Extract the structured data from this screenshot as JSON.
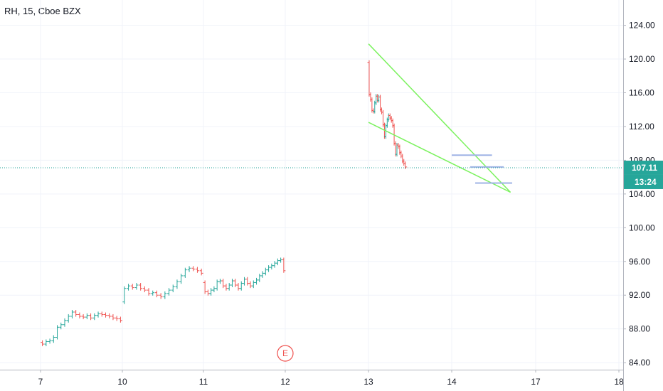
{
  "header": {
    "symbol_label": "RH, 15, Cboe BZX"
  },
  "colors": {
    "up": "#26a69a",
    "down": "#ef5350",
    "trend": "#7cf25f",
    "level": "#9fb3e6",
    "last_price": "#26a69a",
    "grid": "#f0f3fa",
    "axis": "#131722"
  },
  "chart_data": {
    "type": "candlestick",
    "title": "RH, 15, Cboe BZX",
    "x_tick_labels": [
      "7",
      "10",
      "11",
      "12",
      "13",
      "14",
      "17",
      "18"
    ],
    "y_tick_labels": [
      "84.00",
      "88.00",
      "92.00",
      "96.00",
      "100.00",
      "104.00",
      "108.00",
      "112.00",
      "116.00",
      "120.00",
      "124.00"
    ],
    "ylim": [
      83,
      127
    ],
    "last_price": {
      "value": 107.11,
      "label": "107.11",
      "countdown": "13:24"
    },
    "event_marker": {
      "label": "E",
      "day": "12"
    },
    "grid": true,
    "segments": [
      {
        "day_start": 0,
        "day_end": 1,
        "start_value": 86.4,
        "points": [
          86.2,
          86.5,
          86.6,
          87.0,
          88.2,
          88.5,
          89.0,
          89.5,
          90.0,
          89.7,
          89.5,
          89.4,
          89.6,
          89.3,
          89.6,
          89.8,
          89.7,
          89.6,
          89.5,
          89.3,
          89.2,
          89.0
        ]
      },
      {
        "day_start": 1,
        "day_end": 2,
        "start_value": 91.2,
        "points": [
          92.8,
          93.1,
          92.9,
          93.2,
          92.8,
          92.6,
          92.2,
          92.3,
          92.0,
          91.8,
          92.2,
          92.6,
          93.0,
          93.6,
          94.3,
          95.0,
          95.2,
          95.1,
          94.9,
          94.6
        ]
      },
      {
        "day_start": 2,
        "day_end": 3,
        "start_value": 93.5,
        "points": [
          92.4,
          92.2,
          92.6,
          92.8,
          93.6,
          93.7,
          93.1,
          92.8,
          93.2,
          93.7,
          93.2,
          92.8,
          93.4,
          93.9,
          93.4,
          93.1,
          93.5,
          93.8,
          94.3,
          94.6,
          95.0,
          95.3,
          95.5,
          95.8,
          96.1,
          96.2,
          94.9
        ]
      },
      {
        "day_start": 4,
        "day_end": 4.45,
        "start_value": 119.6,
        "points": [
          115.8,
          115.2,
          113.9,
          113.8,
          114.8,
          115.6,
          115.1,
          115.5,
          114.0,
          113.7,
          112.2,
          110.8,
          112.1,
          112.8,
          113.3,
          113.0,
          112.7,
          112.1,
          110.0,
          108.7,
          109.8,
          109.6,
          108.9,
          108.5,
          107.9,
          107.6,
          107.2
        ]
      }
    ],
    "annotations": [
      {
        "type": "trendline",
        "points": [
          [
            4.0,
            121.8
          ],
          [
            5.7,
            104.2
          ]
        ]
      },
      {
        "type": "trendline",
        "points": [
          [
            4.0,
            112.5
          ],
          [
            5.7,
            104.2
          ]
        ]
      },
      {
        "type": "level",
        "value": 108.6,
        "day_start": 5.0,
        "day_end": 5.48
      },
      {
        "type": "level",
        "value": 107.2,
        "day_start": 5.22,
        "day_end": 5.62
      },
      {
        "type": "level",
        "value": 105.3,
        "day_start": 5.28,
        "day_end": 5.72
      }
    ]
  }
}
